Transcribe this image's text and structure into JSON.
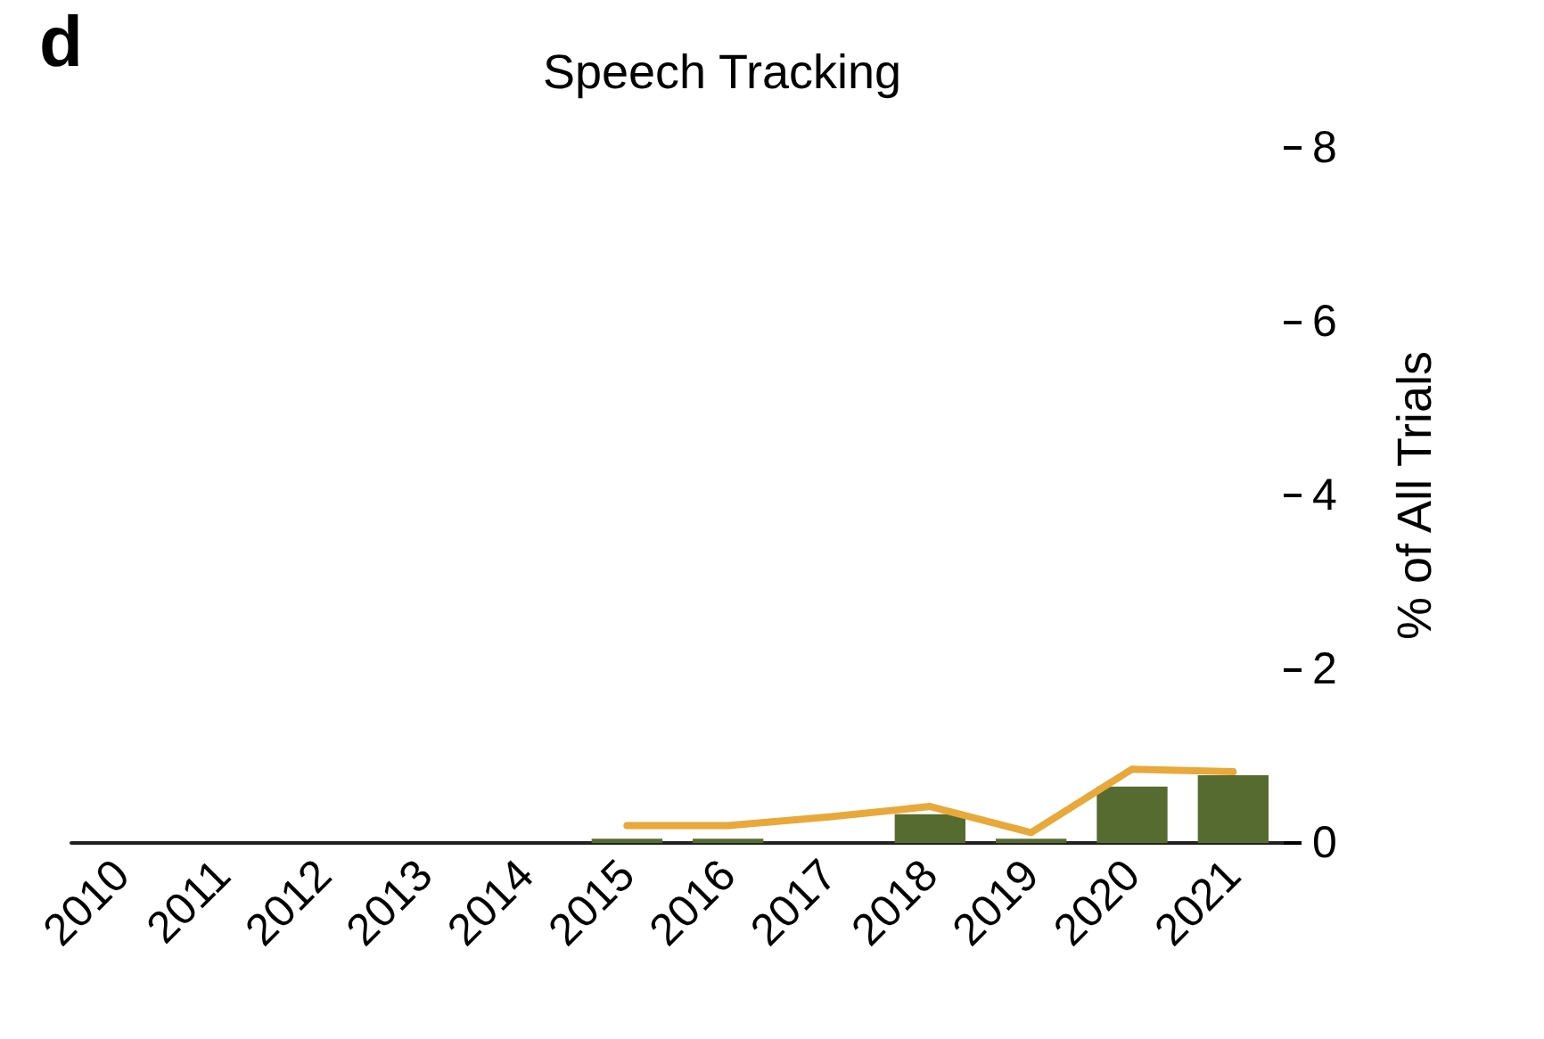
{
  "chart_data": {
    "type": "bar",
    "title": "Speech Tracking",
    "ylabel": "% of All Trials",
    "annotations": [
      "d"
    ],
    "categories": [
      "2010",
      "2011",
      "2012",
      "2013",
      "2014",
      "2015",
      "2016",
      "2017",
      "2018",
      "2019",
      "2020",
      "2021"
    ],
    "series": [
      {
        "color": "#566b30",
        "values": [
          0,
          0,
          0,
          0,
          0,
          0.05,
          0.05,
          0,
          0.33,
          0.05,
          0.65,
          0.78
        ]
      },
      {
        "type": "line",
        "color": "#e8a83a",
        "values": [
          null,
          null,
          null,
          null,
          null,
          0.2,
          0.2,
          0.3,
          0.42,
          0.12,
          0.85,
          0.82
        ]
      }
    ],
    "ylim": [
      0,
      8
    ],
    "yticks": [
      0,
      2,
      4,
      6,
      8
    ],
    "grid": false,
    "marker": "none"
  }
}
